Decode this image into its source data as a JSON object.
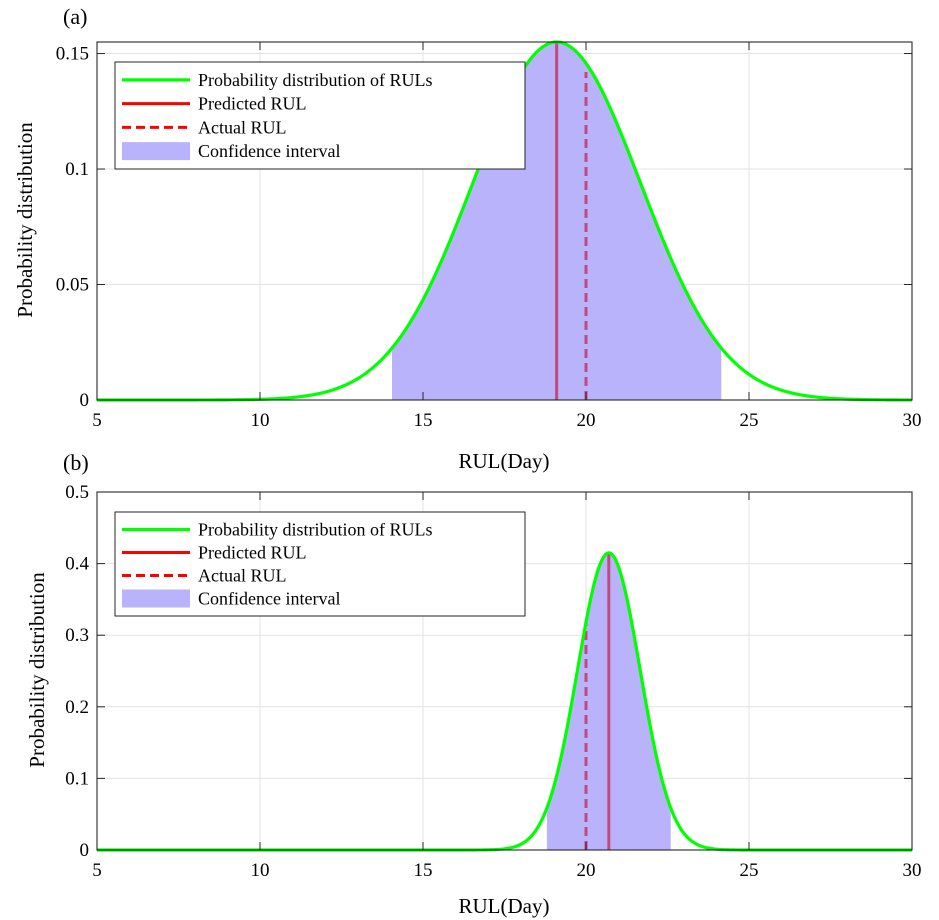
{
  "chart_data": [
    {
      "type": "area",
      "panel_label": "(a)",
      "xlabel": "RUL(Day)",
      "ylabel": "Probability distribution",
      "xlim": [
        5,
        30
      ],
      "ylim": [
        0,
        0.155
      ],
      "xticks": [
        5,
        10,
        15,
        20,
        25,
        30
      ],
      "xtick_labels": [
        "5",
        "10",
        "15",
        "20",
        "25",
        "30"
      ],
      "yticks": [
        0,
        0.05,
        0.1,
        0.15
      ],
      "ytick_labels": [
        "0",
        "0.05",
        "0.1",
        "0.15"
      ],
      "grid": true,
      "legend_position": "top-left",
      "legend": [
        "Probability distribution of RULs",
        "Predicted RUL",
        "Actual RUL",
        "Confidence interval"
      ],
      "distribution": {
        "mean": 19.1,
        "sd": 2.57,
        "peak": 0.155
      },
      "predicted_rul": 19.1,
      "actual_rul": 20.0,
      "actual_line_top": 0.142,
      "confidence_interval": [
        14.05,
        24.15
      ],
      "colors": {
        "pdf": "#00ff00",
        "predicted": "#ff0000",
        "actual": "#ff0000",
        "confidence": "#b9b3fb",
        "overlap": "#c04a7c"
      }
    },
    {
      "type": "area",
      "panel_label": "(b)",
      "xlabel": "RUL(Day)",
      "ylabel": "Probability distribution",
      "xlim": [
        5,
        30
      ],
      "ylim": [
        0,
        0.5
      ],
      "xticks": [
        5,
        10,
        15,
        20,
        25,
        30
      ],
      "xtick_labels": [
        "5",
        "10",
        "15",
        "20",
        "25",
        "30"
      ],
      "yticks": [
        0,
        0.1,
        0.2,
        0.3,
        0.4,
        0.5
      ],
      "ytick_labels": [
        "0",
        "0.1",
        "0.2",
        "0.3",
        "0.4",
        "0.5"
      ],
      "grid": true,
      "legend_position": "top-left",
      "legend": [
        "Probability distribution of RULs",
        "Predicted RUL",
        "Actual RUL",
        "Confidence interval"
      ],
      "distribution": {
        "mean": 20.7,
        "sd": 0.96,
        "peak": 0.415
      },
      "predicted_rul": 20.7,
      "actual_rul": 20.0,
      "actual_line_top": 0.32,
      "confidence_interval": [
        18.8,
        22.6
      ],
      "colors": {
        "pdf": "#00ff00",
        "predicted": "#ff0000",
        "actual": "#ff0000",
        "confidence": "#b9b3fb",
        "overlap": "#c04a7c"
      }
    }
  ]
}
